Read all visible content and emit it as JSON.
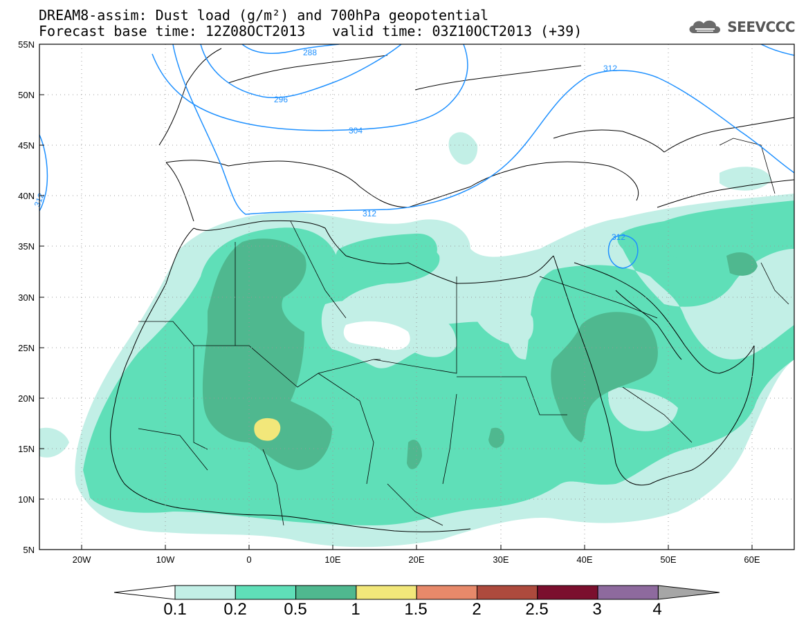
{
  "header": {
    "line1": "DREAM8-assim: Dust load (g/m²) and 700hPa geopotential",
    "line2a": "Forecast base time: 12Z08OCT2013",
    "line2b": "valid time: 03Z10OCT2013 (+39)"
  },
  "logo": {
    "text": "SEEVCCC",
    "icon": "cloud-icon"
  },
  "map": {
    "lat_labels": [
      "55N",
      "50N",
      "45N",
      "40N",
      "35N",
      "30N",
      "25N",
      "20N",
      "15N",
      "10N",
      "5N"
    ],
    "lon_labels": [
      "20W",
      "10W",
      "0",
      "10E",
      "20E",
      "30E",
      "40E",
      "50E",
      "60E"
    ],
    "contour_labels": [
      "288",
      "296",
      "304",
      "312",
      "312",
      "312",
      "312"
    ]
  },
  "colorbar": {
    "labels": [
      "0.1",
      "0.2",
      "0.5",
      "1",
      "1.5",
      "2",
      "2.5",
      "3",
      "4"
    ],
    "colors": [
      "#ffffff",
      "#c2efe6",
      "#5fdfb8",
      "#4fb88f",
      "#f2e77a",
      "#e7896a",
      "#ad4a3d",
      "#7b0f2e",
      "#8e6a9e",
      "#a6a6a6"
    ]
  }
}
